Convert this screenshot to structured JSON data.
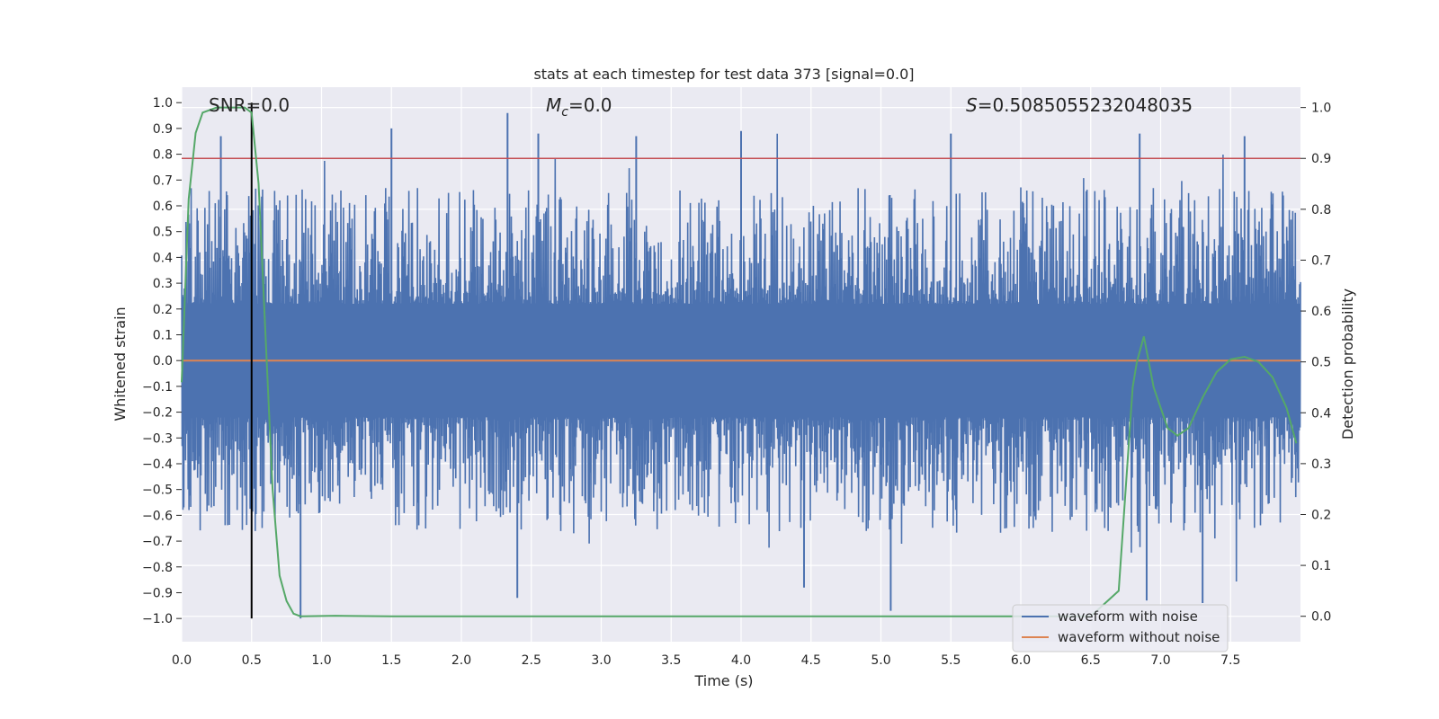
{
  "chart_data": {
    "type": "line",
    "title": "stats at each timestep for test data 373 [signal=0.0]",
    "xlabel": "Time (s)",
    "ylabel_left": "Whitened strain",
    "ylabel_right": "Detection probability",
    "xlim": [
      0.0,
      8.0
    ],
    "ylim_left": [
      -1.09,
      1.06
    ],
    "ylim_right": [
      -0.05,
      1.04
    ],
    "x_ticks": [
      "0.0",
      "0.5",
      "1.0",
      "1.5",
      "2.0",
      "2.5",
      "3.0",
      "3.5",
      "4.0",
      "4.5",
      "5.0",
      "5.5",
      "6.0",
      "6.5",
      "7.0",
      "7.5"
    ],
    "y_left_ticks": [
      "1.0",
      "0.9",
      "0.8",
      "0.7",
      "0.6",
      "0.5",
      "0.4",
      "0.3",
      "0.2",
      "0.1",
      "0.0",
      "-0.1",
      "-0.2",
      "-0.3",
      "-0.4",
      "-0.5",
      "-0.6",
      "-0.7",
      "-0.8",
      "-0.9",
      "-1.0"
    ],
    "y_right_ticks": [
      "1.0",
      "0.9",
      "0.8",
      "0.7",
      "0.6",
      "0.5",
      "0.4",
      "0.3",
      "0.2",
      "0.1",
      "0.0"
    ],
    "annotations": {
      "snr": "SNR=0.0",
      "mc_symbol": "M",
      "mc_sub": "c",
      "mc_value": "=0.0",
      "s_symbol": "S",
      "s_value": "=0.5085055232048035"
    },
    "series": [
      {
        "name": "waveform with noise",
        "color": "#4c72b0",
        "axis": "left",
        "description_values": "dense noise, envelope roughly -1.0 to 0.96 whitened strain",
        "peak_times": [
          0.28,
          1.5,
          2.33,
          2.55,
          3.25,
          4.0,
          5.5,
          6.85,
          7.6
        ],
        "peak_values": [
          0.87,
          0.9,
          0.96,
          0.88,
          0.87,
          0.89,
          0.88,
          0.88,
          0.87
        ],
        "trough_times": [
          0.85,
          2.4,
          4.45,
          5.07,
          6.9,
          7.3
        ],
        "trough_values": [
          -1.0,
          -0.92,
          -0.88,
          -0.97,
          -0.93,
          -0.94
        ]
      },
      {
        "name": "waveform without noise",
        "color": "#dd8452",
        "axis": "left",
        "x": [
          0.0,
          8.0
        ],
        "y": [
          0.0,
          0.0
        ]
      },
      {
        "name": "detection probability",
        "color": "#55a868",
        "axis": "right",
        "x": [
          0.0,
          0.05,
          0.1,
          0.15,
          0.25,
          0.35,
          0.45,
          0.5,
          0.55,
          0.6,
          0.65,
          0.7,
          0.75,
          0.8,
          0.85,
          1.1,
          1.5,
          2.0,
          3.0,
          4.0,
          5.0,
          6.0,
          6.5,
          6.7,
          6.75,
          6.8,
          6.83,
          6.88,
          6.95,
          7.05,
          7.12,
          7.2,
          7.3,
          7.4,
          7.5,
          7.6,
          7.7,
          7.8,
          7.9,
          7.97
        ],
        "y": [
          0.46,
          0.82,
          0.95,
          0.99,
          1.0,
          1.0,
          1.0,
          0.99,
          0.85,
          0.55,
          0.25,
          0.08,
          0.03,
          0.005,
          0.0,
          0.001,
          0.0,
          0.0,
          0.0,
          0.0,
          0.0,
          0.0,
          0.0,
          0.05,
          0.25,
          0.45,
          0.5,
          0.55,
          0.45,
          0.37,
          0.355,
          0.37,
          0.43,
          0.48,
          0.505,
          0.51,
          0.5,
          0.47,
          0.41,
          0.34
        ]
      }
    ],
    "threshold_line": {
      "value_right": 0.9,
      "color": "#c44e52"
    },
    "marker_line": {
      "x": 0.5,
      "y_from": -1.0,
      "y_to": 1.0,
      "color": "#000000"
    },
    "legend": {
      "placement": "bottom-right",
      "entries": [
        {
          "label": "waveform with noise",
          "color": "#4c72b0"
        },
        {
          "label": "waveform without noise",
          "color": "#dd8452"
        }
      ]
    },
    "grid": true,
    "background": "#eaeaf2"
  }
}
